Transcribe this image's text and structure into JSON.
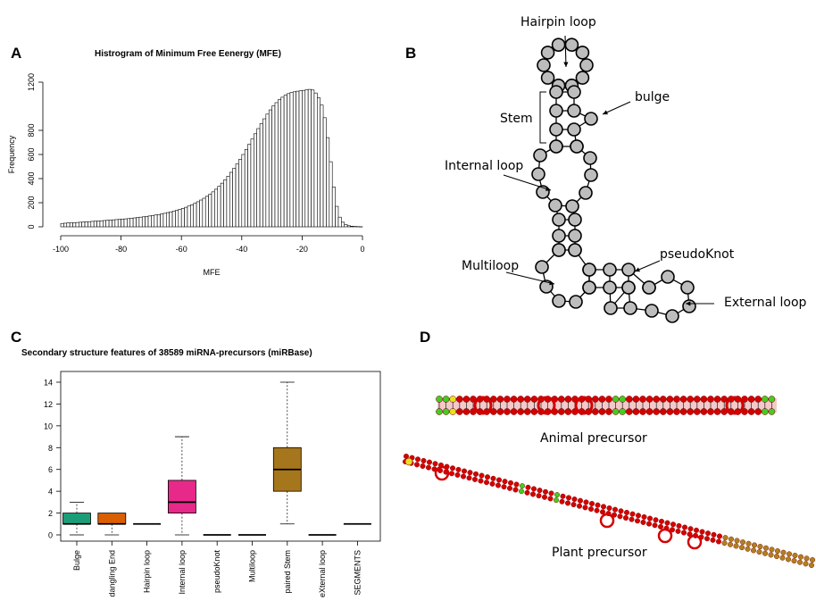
{
  "panels": {
    "a": {
      "letter": "A"
    },
    "b": {
      "letter": "B"
    },
    "c": {
      "letter": "C"
    },
    "d": {
      "letter": "D"
    }
  },
  "colors": {
    "hist_fill": "#ffffff",
    "node_fill": "#bdbdbd",
    "box_bulge": "#1b9e77",
    "box_dangling": "#d95f02",
    "box_internal": "#e7298a",
    "box_stem": "#a6761d",
    "rna_red": "#d40000",
    "rna_green": "#44cc22",
    "rna_yellow": "#e8e020"
  },
  "diagram": {
    "labels": {
      "hairpin": "Hairpin loop",
      "bulge": "bulge",
      "stem": "Stem",
      "internal": "Internal loop",
      "pseudoknot": "pseudoKnot",
      "multiloop": "Multiloop",
      "external": "External loop"
    }
  },
  "precursors": {
    "animal": "Animal precursor",
    "plant": "Plant  precursor"
  },
  "chart_data": [
    {
      "type": "bar",
      "title": "Histrogram of Minimum Free Eenergy (MFE)",
      "xlabel": "MFE",
      "ylabel": "Frequency",
      "xlim": [
        -100,
        0
      ],
      "ylim": [
        0,
        1200
      ],
      "xticks": [
        -100,
        -80,
        -60,
        -40,
        -20,
        0
      ],
      "yticks": [
        0,
        200,
        400,
        600,
        800,
        1200
      ],
      "bin_width": 1,
      "bins_start": -100,
      "values": [
        28,
        30,
        32,
        33,
        35,
        36,
        38,
        40,
        42,
        43,
        45,
        47,
        48,
        50,
        52,
        54,
        56,
        58,
        60,
        62,
        64,
        66,
        68,
        71,
        74,
        77,
        80,
        83,
        86,
        90,
        94,
        98,
        102,
        107,
        112,
        118,
        124,
        130,
        137,
        145,
        153,
        162,
        172,
        183,
        195,
        208,
        222,
        237,
        253,
        270,
        290,
        312,
        336,
        362,
        390,
        420,
        452,
        486,
        522,
        560,
        600,
        642,
        685,
        728,
        772,
        815,
        856,
        896,
        935,
        970,
        1003,
        1030,
        1055,
        1075,
        1092,
        1105,
        1114,
        1120,
        1125,
        1128,
        1132,
        1136,
        1140,
        1135,
        1110,
        1070,
        1010,
        905,
        740,
        540,
        330,
        170,
        80,
        38,
        18,
        9,
        5,
        3,
        2,
        1
      ]
    },
    {
      "type": "box",
      "title": "Secondary structure features of 38589 miRNA-precursors (miRBase)",
      "ylim": [
        0,
        14
      ],
      "yticks": [
        0,
        2,
        4,
        6,
        8,
        10,
        12,
        14
      ],
      "categories": [
        "Bulge",
        "dangling End",
        "Hairpin loop",
        "Internal loop",
        "pseudoKnot",
        "Multiloop",
        "paired Stem",
        "eXternal loop",
        "SEGMENTS"
      ],
      "boxes": [
        {
          "min": 0,
          "q1": 1,
          "median": 1,
          "q3": 2,
          "max": 3
        },
        {
          "min": 0,
          "q1": 1,
          "median": 1,
          "q3": 2,
          "max": 2
        },
        {
          "min": 1,
          "q1": 1,
          "median": 1,
          "q3": 1,
          "max": 1
        },
        {
          "min": 0,
          "q1": 2,
          "median": 3,
          "q3": 5,
          "max": 9
        },
        {
          "min": 0,
          "q1": 0,
          "median": 0,
          "q3": 0,
          "max": 0
        },
        {
          "min": 0,
          "q1": 0,
          "median": 0,
          "q3": 0,
          "max": 0
        },
        {
          "min": 1,
          "q1": 4,
          "median": 6,
          "q3": 8,
          "max": 14
        },
        {
          "min": 0,
          "q1": 0,
          "median": 0,
          "q3": 0,
          "max": 0
        },
        {
          "min": 1,
          "q1": 1,
          "median": 1,
          "q3": 1,
          "max": 1
        }
      ]
    }
  ]
}
